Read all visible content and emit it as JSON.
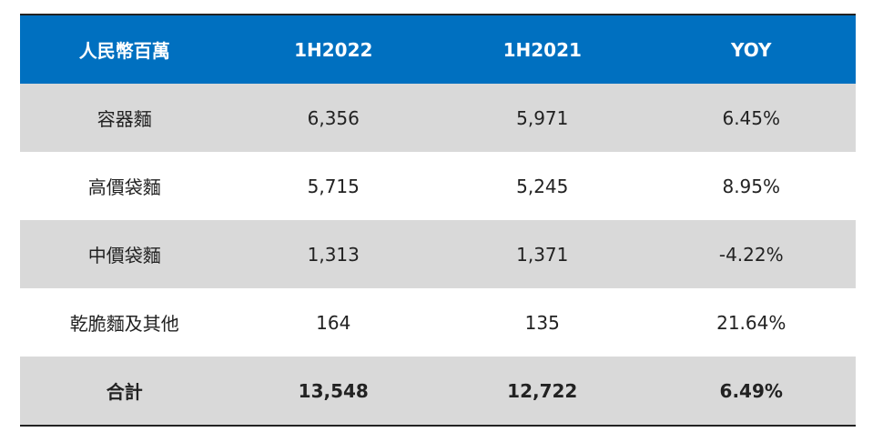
{
  "table": {
    "header": [
      "人民幣百萬",
      "1H2022",
      "1H2021",
      "YOY"
    ],
    "rows": [
      [
        "容器麵",
        "6,356",
        "5,971",
        "6.45%"
      ],
      [
        "高價袋麵",
        "5,715",
        "5,245",
        "8.95%"
      ],
      [
        "中價袋麵",
        "1,313",
        "1,371",
        "-4.22%"
      ],
      [
        "乾脆麵及其他",
        "164",
        "135",
        "21.64%"
      ],
      [
        "合計",
        "13,548",
        "12,722",
        "6.49%"
      ]
    ]
  }
}
